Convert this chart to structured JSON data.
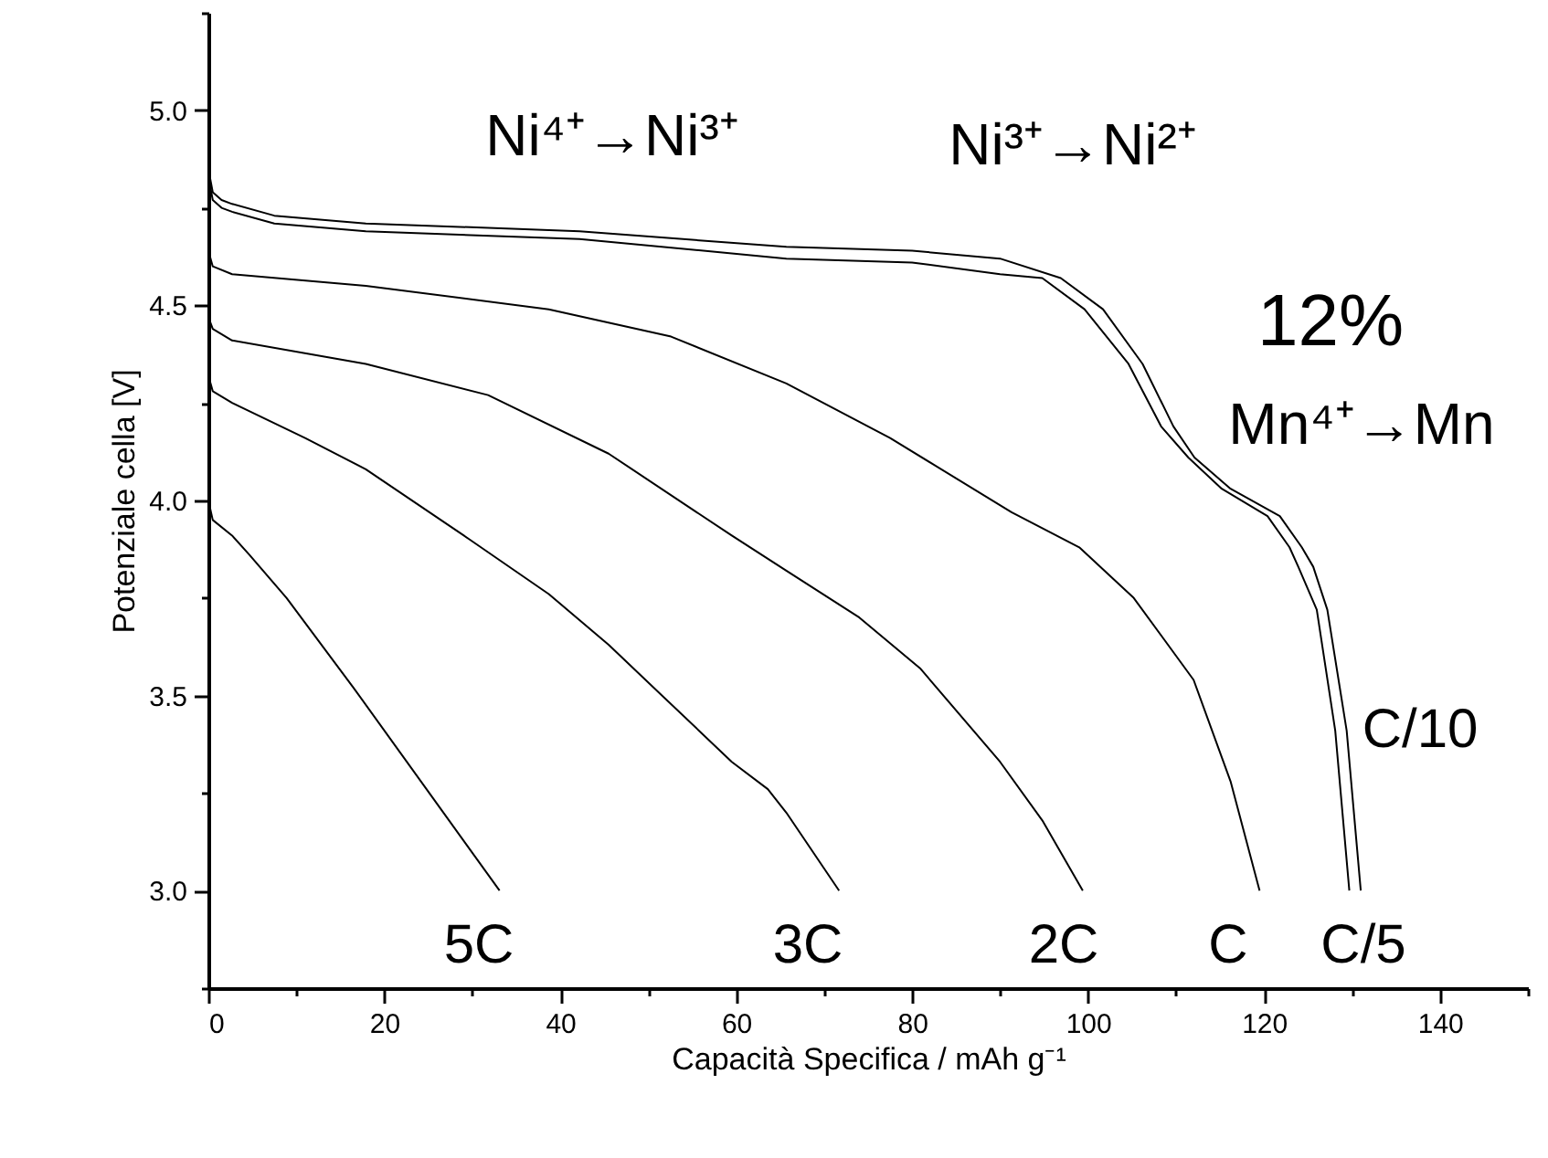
{
  "chart_data": {
    "type": "line",
    "xlabel": "Capacità Specifica / mAh g⁻¹",
    "ylabel": "Potenziale cella [V]",
    "xlim": [
      0,
      150
    ],
    "ylim": [
      2.75,
      5.25
    ],
    "xticks": [
      0,
      {
        "value": 10,
        "label": null
      },
      20,
      {
        "value": 30,
        "label": null
      },
      40,
      {
        "value": 50,
        "label": null
      },
      60,
      {
        "value": 70,
        "label": null
      },
      80,
      {
        "value": 90,
        "label": null
      },
      100,
      {
        "value": 110,
        "label": null
      },
      120,
      {
        "value": 130,
        "label": null
      },
      140,
      {
        "value": 150,
        "label": null
      }
    ],
    "yticks": [
      {
        "value": 2.75,
        "label": null
      },
      {
        "value": 3,
        "label": "3.0"
      },
      {
        "value": 3.25,
        "label": null
      },
      {
        "value": 3.5,
        "label": "3.5"
      },
      {
        "value": 3.75,
        "label": null
      },
      {
        "value": 4,
        "label": "4.0"
      },
      {
        "value": 4.25,
        "label": null
      },
      {
        "value": 4.5,
        "label": "4.5"
      },
      {
        "value": 4.75,
        "label": null
      },
      {
        "value": 5,
        "label": "5.0"
      },
      {
        "value": 5.25,
        "label": null
      }
    ],
    "line_style": "solid",
    "series": [
      {
        "color": "#000000",
        "x": [
          0,
          0.5,
          1.5,
          2.7,
          7.5,
          17.9,
          42.2,
          65.7,
          80,
          90,
          96.9,
          101.7,
          106.2,
          109.7,
          112.1,
          116.2,
          121.8,
          124.3,
          125.6,
          127.2,
          129.4,
          131.0
        ],
        "values": [
          4.85,
          4.79,
          4.77,
          4.76,
          4.73,
          4.71,
          4.69,
          4.65,
          4.64,
          4.62,
          4.57,
          4.49,
          4.35,
          4.19,
          4.11,
          4.03,
          3.96,
          3.88,
          3.83,
          3.72,
          3.41,
          3.0
        ]
      },
      {
        "color": "#000000",
        "x": [
          0,
          0.5,
          1.5,
          2.7,
          7.5,
          17.9,
          42.2,
          65.7,
          80,
          90,
          94.8,
          99.6,
          104.6,
          108.3,
          111.4,
          115.2,
          120.4,
          122.9,
          123.9,
          126.0,
          128.1,
          129.7
        ],
        "values": [
          4.83,
          4.77,
          4.75,
          4.74,
          4.71,
          4.69,
          4.67,
          4.62,
          4.61,
          4.58,
          4.57,
          4.49,
          4.35,
          4.19,
          4.11,
          4.03,
          3.96,
          3.88,
          3.83,
          3.72,
          3.41,
          3.0
        ]
      },
      {
        "color": "#000000",
        "x": [
          0,
          0.5,
          2.7,
          17.9,
          38.7,
          52.6,
          65.7,
          77.5,
          91.3,
          99,
          105.2,
          112,
          116.2,
          119.5
        ],
        "values": [
          4.64,
          4.6,
          4.58,
          4.55,
          4.49,
          4.42,
          4.3,
          4.16,
          3.97,
          3.88,
          3.75,
          3.54,
          3.28,
          3.0
        ]
      },
      {
        "color": "#000000",
        "x": [
          0,
          0.5,
          2.7,
          17.9,
          31.8,
          45.5,
          59.5,
          65.7,
          74,
          80.9,
          90,
          94.8,
          99.4
        ],
        "values": [
          4.47,
          4.44,
          4.41,
          4.35,
          4.27,
          4.12,
          3.91,
          3.82,
          3.7,
          3.57,
          3.33,
          3.18,
          3.0
        ]
      },
      {
        "color": "#000000",
        "x": [
          0,
          0.5,
          2.7,
          11,
          17.9,
          29.7,
          38.7,
          45.5,
          59.5,
          63.6,
          65.7,
          71.7
        ],
        "values": [
          4.32,
          4.28,
          4.25,
          4.16,
          4.08,
          3.9,
          3.76,
          3.63,
          3.33,
          3.26,
          3.2,
          3.0
        ]
      },
      {
        "color": "#000000",
        "x": [
          0,
          0.5,
          2.7,
          4.7,
          8.9,
          16.5,
          24.8,
          33.1
        ],
        "values": [
          4.0,
          3.95,
          3.91,
          3.86,
          3.75,
          3.52,
          3.26,
          3.0
        ]
      }
    ],
    "annotations": [
      "Ni⁴⁺→Ni³⁺",
      "Ni³⁺→Ni²⁺",
      "12%",
      "Mn⁴⁺→Mn",
      "C/10",
      "5C",
      "3C",
      "2C",
      "C",
      "C/5"
    ]
  }
}
